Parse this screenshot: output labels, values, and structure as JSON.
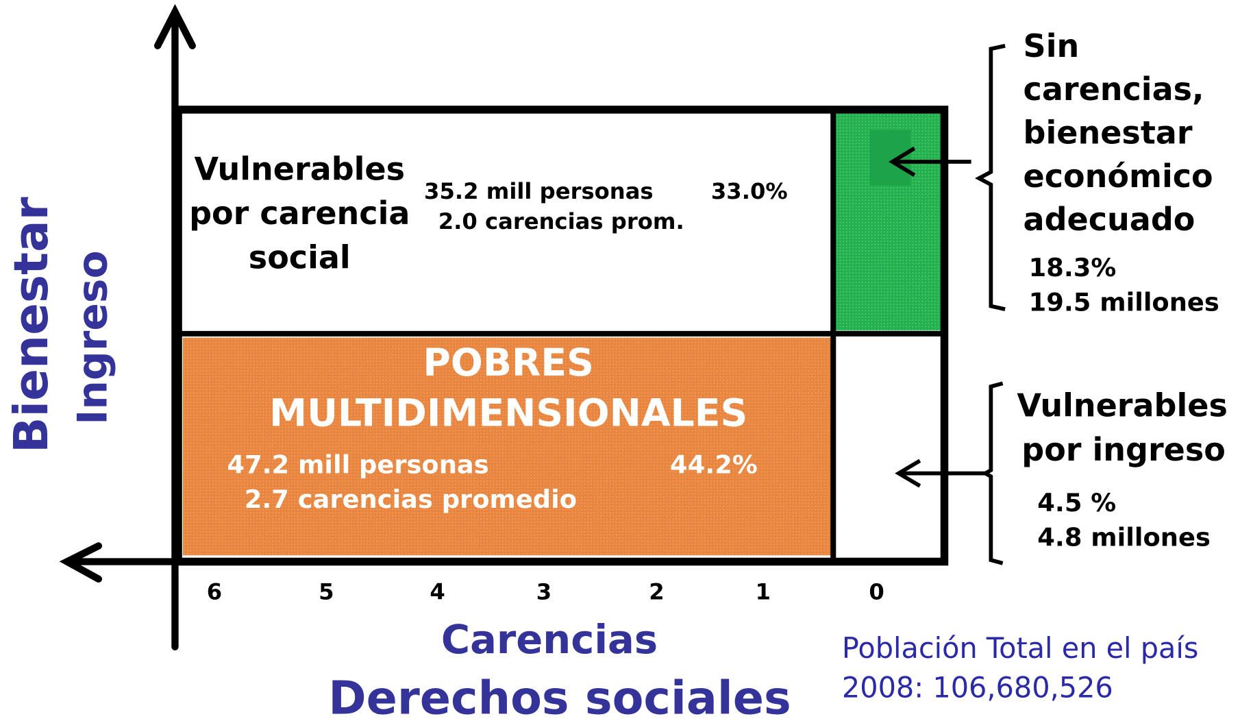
{
  "axes": {
    "y_outer": "Bienestar",
    "y_inner": "Ingreso",
    "x_outer": "Derechos sociales",
    "x_inner": "Carencias",
    "x_ticks": [
      "6",
      "5",
      "4",
      "3",
      "2",
      "1",
      "0"
    ]
  },
  "vulnerables_carencia": {
    "label": [
      "Vulnerables",
      "por carencia",
      "social"
    ],
    "persons": "35.2 mill personas",
    "percent": "33.0%",
    "average": "2.0 carencias prom."
  },
  "pobres": {
    "label": [
      "POBRES",
      "MULTIDIMENSIONALES"
    ],
    "persons": "47.2 mill personas",
    "percent": "44.2%",
    "average": "2.7 carencias promedio"
  },
  "sin_carencias": {
    "label": [
      "Sin",
      "carencias,",
      "bienestar",
      "económico",
      "adecuado"
    ],
    "percent": "18.3%",
    "count": "19.5 millones"
  },
  "vulnerables_ingreso": {
    "label": [
      "Vulnerables",
      "por ingreso"
    ],
    "percent": "4.5 %",
    "count": "4.8 millones"
  },
  "population": [
    "Población Total en el país",
    "2008: 106,680,526"
  ]
}
